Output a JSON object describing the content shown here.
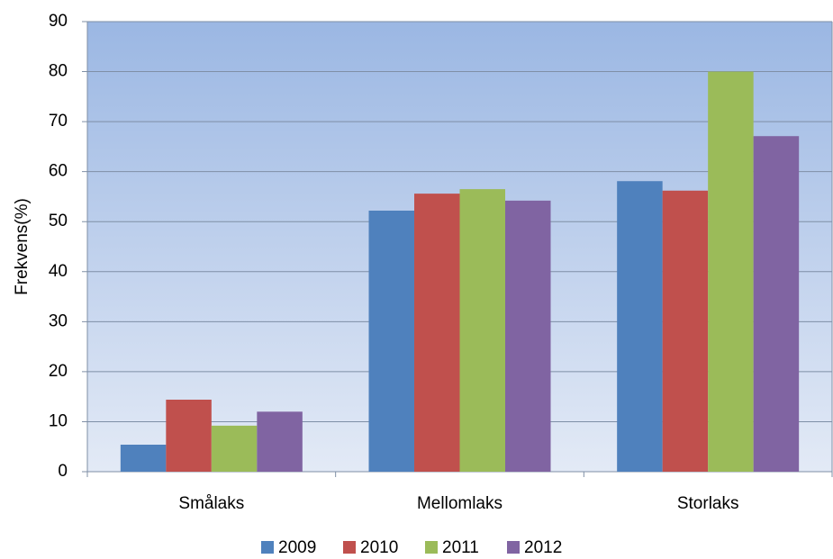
{
  "chart_data": {
    "type": "bar",
    "y_label": "Frekvens(%)",
    "categories": [
      "Smålaks",
      "Mellomlaks",
      "Storlaks"
    ],
    "series": [
      {
        "name": "2009",
        "color": "#4f81bd",
        "values": [
          5.4,
          52.2,
          58.1
        ]
      },
      {
        "name": "2010",
        "color": "#c0504d",
        "values": [
          14.4,
          55.6,
          56.2
        ]
      },
      {
        "name": "2011",
        "color": "#9bbb59",
        "values": [
          9.2,
          56.5,
          80
        ]
      },
      {
        "name": "2012",
        "color": "#8064a2",
        "values": [
          12,
          54.2,
          67.1
        ]
      }
    ],
    "ylim": [
      0,
      90
    ],
    "yticks": [
      0,
      10,
      20,
      30,
      40,
      50,
      60,
      70,
      80,
      90
    ],
    "grid": true,
    "legend": "bottom"
  }
}
